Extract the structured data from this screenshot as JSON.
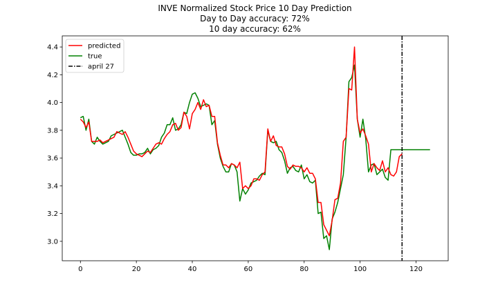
{
  "chart_data": {
    "type": "line",
    "title": [
      "INVE Normalized Stock Price 10 Day Prediction",
      "Day to Day accuracy: 72%",
      "10 day accuracy: 62%"
    ],
    "xlabel": "",
    "ylabel": "",
    "xlim": [
      -6.5,
      131.5
    ],
    "ylim": [
      2.86,
      4.48
    ],
    "xticks": [
      0,
      20,
      40,
      60,
      80,
      100,
      120
    ],
    "yticks": [
      3.0,
      3.2,
      3.4,
      3.6,
      3.8,
      4.0,
      4.2,
      4.4
    ],
    "grid": false,
    "legend": "top-left",
    "vline": {
      "x": 115,
      "name": "april 27",
      "color": "#000000",
      "style": "dashdot"
    },
    "series": [
      {
        "name": "predicted",
        "color": "#ff0000",
        "x": [
          0,
          1,
          2,
          3,
          4,
          5,
          6,
          7,
          8,
          9,
          10,
          11,
          12,
          13,
          14,
          15,
          16,
          17,
          18,
          19,
          20,
          21,
          22,
          23,
          24,
          25,
          26,
          27,
          28,
          29,
          30,
          31,
          32,
          33,
          34,
          35,
          36,
          37,
          38,
          39,
          40,
          41,
          42,
          43,
          44,
          45,
          46,
          47,
          48,
          49,
          50,
          51,
          52,
          53,
          54,
          55,
          56,
          57,
          58,
          59,
          60,
          61,
          62,
          63,
          64,
          65,
          66,
          67,
          68,
          69,
          70,
          71,
          72,
          73,
          74,
          75,
          76,
          77,
          78,
          79,
          80,
          81,
          82,
          83,
          84,
          85,
          86,
          87,
          88,
          89,
          90,
          91,
          92,
          93,
          94,
          95,
          96,
          97,
          98,
          99,
          100,
          101,
          102,
          103,
          104,
          105,
          106,
          107,
          108,
          109,
          110,
          111,
          112,
          113,
          114,
          115
        ],
        "values": [
          3.88,
          3.86,
          3.82,
          3.86,
          3.72,
          3.72,
          3.72,
          3.73,
          3.71,
          3.72,
          3.73,
          3.74,
          3.75,
          3.79,
          3.78,
          3.77,
          3.79,
          3.75,
          3.7,
          3.65,
          3.63,
          3.62,
          3.61,
          3.63,
          3.65,
          3.64,
          3.67,
          3.7,
          3.71,
          3.7,
          3.74,
          3.77,
          3.79,
          3.84,
          3.85,
          3.8,
          3.82,
          3.93,
          3.9,
          3.81,
          3.92,
          3.95,
          4.0,
          3.95,
          4.02,
          3.97,
          3.98,
          3.9,
          3.9,
          3.71,
          3.62,
          3.55,
          3.55,
          3.53,
          3.56,
          3.55,
          3.53,
          3.57,
          3.38,
          3.4,
          3.38,
          3.4,
          3.45,
          3.45,
          3.44,
          3.48,
          3.5,
          3.81,
          3.72,
          3.76,
          3.69,
          3.68,
          3.68,
          3.63,
          3.54,
          3.52,
          3.55,
          3.54,
          3.54,
          3.53,
          3.5,
          3.53,
          3.49,
          3.49,
          3.45,
          3.28,
          3.28,
          3.12,
          3.08,
          3.04,
          3.15,
          3.3,
          3.31,
          3.42,
          3.72,
          3.75,
          4.1,
          4.09,
          4.4,
          3.88,
          3.78,
          3.81,
          3.76,
          3.7,
          3.5,
          3.56,
          3.53,
          3.51,
          3.58,
          3.5,
          3.53,
          3.48,
          3.47,
          3.5,
          3.61,
          3.63
        ]
      },
      {
        "name": "true",
        "color": "#008000",
        "x": [
          0,
          1,
          2,
          3,
          4,
          5,
          6,
          7,
          8,
          9,
          10,
          11,
          12,
          13,
          14,
          15,
          16,
          17,
          18,
          19,
          20,
          21,
          22,
          23,
          24,
          25,
          26,
          27,
          28,
          29,
          30,
          31,
          32,
          33,
          34,
          35,
          36,
          37,
          38,
          39,
          40,
          41,
          42,
          43,
          44,
          45,
          46,
          47,
          48,
          49,
          50,
          51,
          52,
          53,
          54,
          55,
          56,
          57,
          58,
          59,
          60,
          61,
          62,
          63,
          64,
          65,
          66,
          67,
          68,
          69,
          70,
          71,
          72,
          73,
          74,
          75,
          76,
          77,
          78,
          79,
          80,
          81,
          82,
          83,
          84,
          85,
          86,
          87,
          88,
          89,
          90,
          91,
          92,
          93,
          94,
          95,
          96,
          97,
          98,
          99,
          100,
          101,
          102,
          103,
          104,
          105,
          106,
          107,
          108,
          109,
          110,
          111,
          112,
          113,
          114,
          115,
          116,
          117,
          118,
          119,
          120,
          121,
          122,
          123,
          124,
          125
        ],
        "values": [
          3.89,
          3.9,
          3.8,
          3.88,
          3.72,
          3.7,
          3.75,
          3.72,
          3.7,
          3.71,
          3.72,
          3.76,
          3.77,
          3.78,
          3.79,
          3.8,
          3.75,
          3.7,
          3.64,
          3.62,
          3.62,
          3.63,
          3.63,
          3.64,
          3.67,
          3.63,
          3.66,
          3.67,
          3.69,
          3.75,
          3.78,
          3.84,
          3.84,
          3.89,
          3.8,
          3.81,
          3.84,
          3.93,
          3.92,
          4.0,
          4.06,
          4.07,
          4.03,
          3.97,
          3.98,
          3.99,
          3.98,
          3.84,
          3.87,
          3.7,
          3.6,
          3.54,
          3.5,
          3.5,
          3.56,
          3.55,
          3.5,
          3.29,
          3.38,
          3.34,
          3.37,
          3.42,
          3.43,
          3.44,
          3.47,
          3.49,
          3.48,
          3.8,
          3.72,
          3.71,
          3.72,
          3.66,
          3.64,
          3.58,
          3.49,
          3.53,
          3.54,
          3.51,
          3.5,
          3.55,
          3.45,
          3.48,
          3.43,
          3.42,
          3.44,
          3.2,
          3.21,
          3.02,
          3.04,
          2.94,
          3.16,
          3.21,
          3.28,
          3.38,
          3.48,
          3.75,
          4.15,
          4.18,
          4.27,
          3.88,
          3.75,
          3.88,
          3.74,
          3.5,
          3.55,
          3.56,
          3.48,
          3.5,
          3.52,
          3.46,
          3.44,
          3.66,
          3.66,
          3.66,
          3.66,
          3.66,
          3.66,
          3.66,
          3.66,
          3.66,
          3.66,
          3.66,
          3.66,
          3.66,
          3.66,
          3.66
        ]
      }
    ]
  }
}
